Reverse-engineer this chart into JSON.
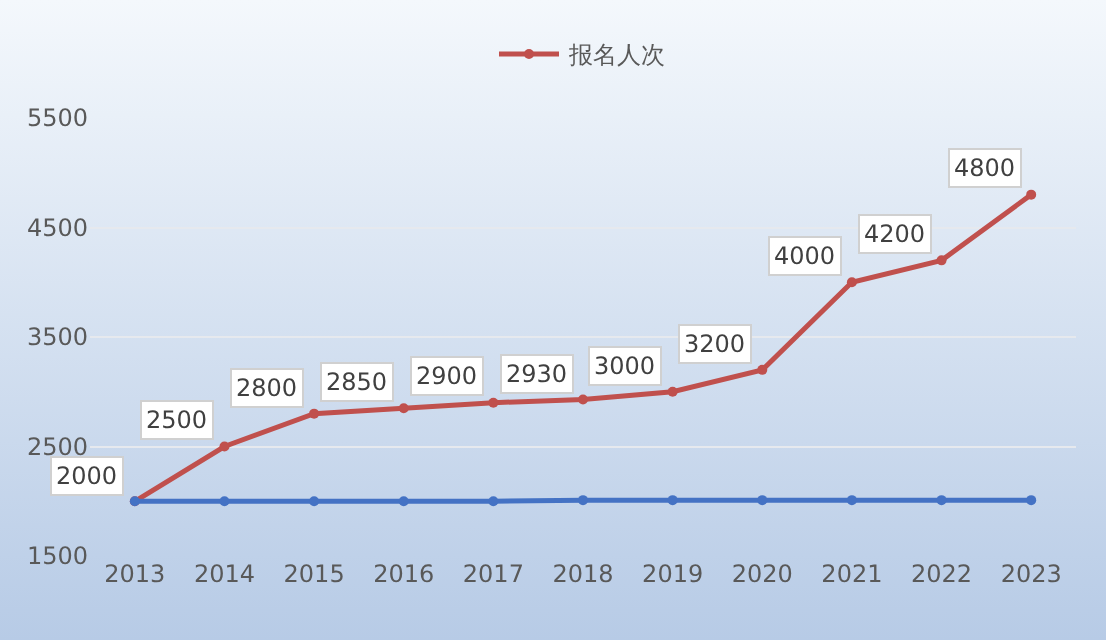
{
  "chart_data": {
    "type": "line",
    "categories": [
      "2013",
      "2014",
      "2015",
      "2016",
      "2017",
      "2018",
      "2019",
      "2020",
      "2021",
      "2022",
      "2023"
    ],
    "series": [
      {
        "name": "报名人次",
        "color": "#c0504d",
        "values": [
          2000,
          2500,
          2800,
          2850,
          2900,
          2930,
          3000,
          3200,
          4000,
          4200,
          4800
        ],
        "value_labels": [
          "2000",
          "2500",
          "2800",
          "2850",
          "2900",
          "2930",
          "3000",
          "3200",
          "4000",
          "4200",
          "4800"
        ]
      },
      {
        "color": "#4472c4",
        "values": [
          2000,
          2000,
          2000,
          2000,
          2000,
          2010,
          2010,
          2010,
          2010,
          2010,
          2010
        ]
      }
    ],
    "ylim": [
      1500,
      5500
    ],
    "yticks": [
      1500,
      2500,
      3500,
      4500,
      5500
    ],
    "grid": "y",
    "legend": "top",
    "marker": "circle",
    "line_style": "solid"
  }
}
